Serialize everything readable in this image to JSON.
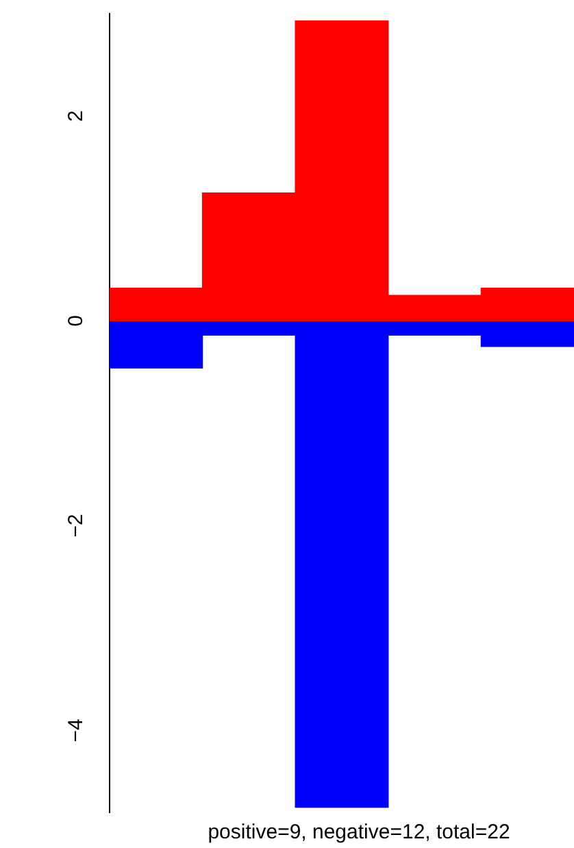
{
  "chart_data": {
    "type": "bar",
    "stacked": true,
    "categories": [
      null,
      null,
      null,
      null,
      null
    ],
    "series": [
      {
        "color": "#ff0000",
        "values": [
          0.32,
          1.25,
          2.93,
          0.25,
          0.32
        ]
      },
      {
        "color": "#0000ff",
        "values": [
          -0.46,
          -0.14,
          -4.75,
          -0.14,
          -0.25
        ]
      }
    ],
    "ylim": [
      -4.8,
      3.0
    ],
    "yticks": [
      {
        "value": -4,
        "label": "−4"
      },
      {
        "value": -2,
        "label": "−2"
      },
      0,
      2
    ],
    "grid": false,
    "legend": false,
    "tick_labels": "y",
    "annotations": [
      "positive=9, negative=12, total=22"
    ]
  }
}
